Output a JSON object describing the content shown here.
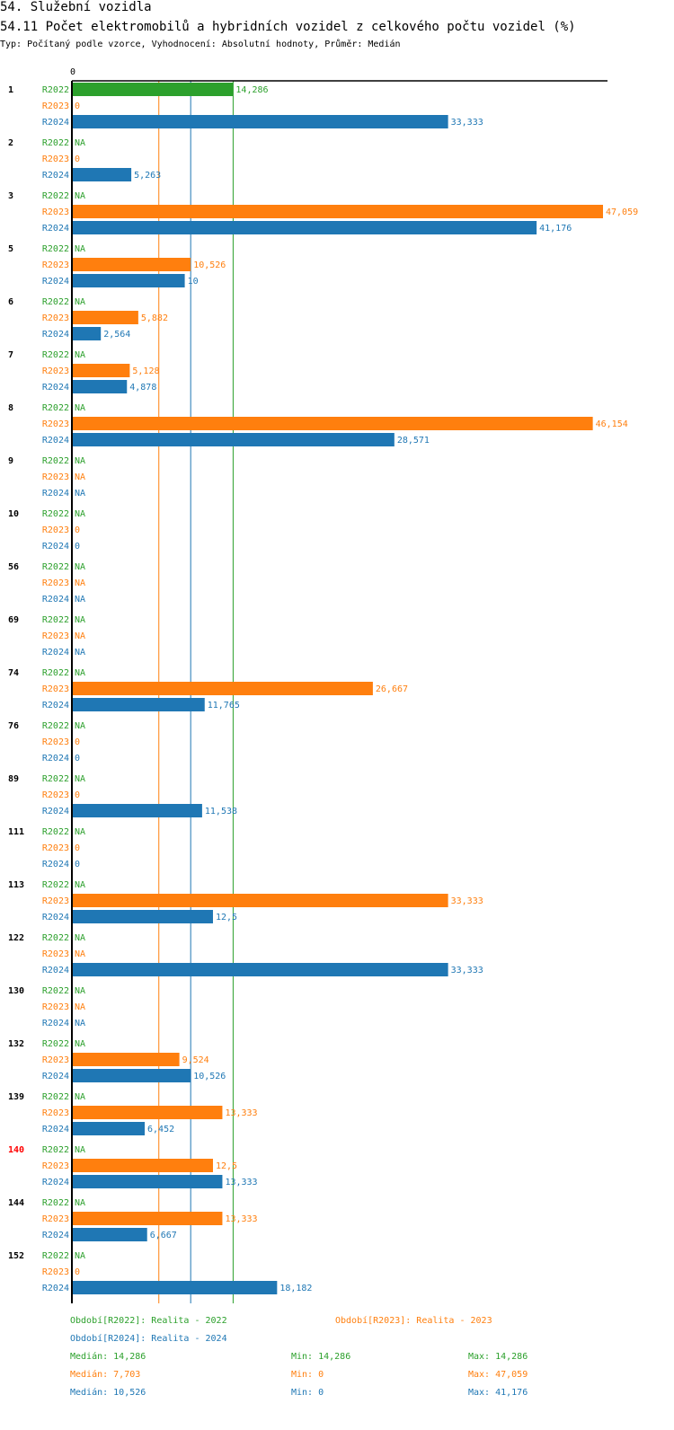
{
  "header": {
    "section_title": "54. Služební vozidla",
    "chart_title": "54.11 Počet elektromobilů a hybridních vozidel z celkového počtu vozidel (%)",
    "subtitle": "Typ: Počítaný podle vzorce, Vyhodnocení: Absolutní hodnoty, Průměr: Medián"
  },
  "chart_data": {
    "type": "bar",
    "orientation": "horizontal",
    "title": "54.11 Počet elektromobilů a hybridních vozidel z celkového počtu vozidel (%)",
    "axis_zero_label": "0",
    "xlim": [
      0,
      47.059
    ],
    "categories": [
      "1",
      "2",
      "3",
      "5",
      "6",
      "7",
      "8",
      "9",
      "10",
      "56",
      "69",
      "74",
      "76",
      "89",
      "111",
      "113",
      "122",
      "130",
      "132",
      "139",
      "140",
      "144",
      "152"
    ],
    "highlight_category": "140",
    "series": [
      {
        "name": "R2022",
        "color": "#2ca02c",
        "values": [
          14.286,
          null,
          null,
          null,
          null,
          null,
          null,
          null,
          null,
          null,
          null,
          null,
          null,
          null,
          null,
          null,
          null,
          null,
          null,
          null,
          null,
          null,
          null
        ],
        "labels": [
          "14,286",
          "NA",
          "NA",
          "NA",
          "NA",
          "NA",
          "NA",
          "NA",
          "NA",
          "NA",
          "NA",
          "NA",
          "NA",
          "NA",
          "NA",
          "NA",
          "NA",
          "NA",
          "NA",
          "NA",
          "NA",
          "NA",
          "NA"
        ]
      },
      {
        "name": "R2023",
        "color": "#ff7f0e",
        "values": [
          0,
          0,
          47.059,
          10.526,
          5.882,
          5.128,
          46.154,
          null,
          0,
          null,
          null,
          26.667,
          0,
          0,
          0,
          33.333,
          null,
          null,
          9.524,
          13.333,
          12.5,
          13.333,
          0
        ],
        "labels": [
          "0",
          "0",
          "47,059",
          "10,526",
          "5,882",
          "5,128",
          "46,154",
          "NA",
          "0",
          "NA",
          "NA",
          "26,667",
          "0",
          "0",
          "0",
          "33,333",
          "NA",
          "NA",
          "9,524",
          "13,333",
          "12,5",
          "13,333",
          "0"
        ]
      },
      {
        "name": "R2024",
        "color": "#1f77b4",
        "values": [
          33.333,
          5.263,
          41.176,
          10,
          2.564,
          4.878,
          28.571,
          null,
          0,
          null,
          null,
          11.765,
          0,
          11.538,
          0,
          12.5,
          33.333,
          null,
          10.526,
          6.452,
          13.333,
          6.667,
          18.182
        ],
        "labels": [
          "33,333",
          "5,263",
          "41,176",
          "10",
          "2,564",
          "4,878",
          "28,571",
          "NA",
          "0",
          "NA",
          "NA",
          "11,765",
          "0",
          "11,538",
          "0",
          "12,5",
          "33,333",
          "NA",
          "10,526",
          "6,452",
          "13,333",
          "6,667",
          "18,182"
        ]
      }
    ],
    "median_lines": [
      {
        "series": "R2023",
        "value": 7.703
      },
      {
        "series": "R2024",
        "value": 10.526
      },
      {
        "series": "R2022",
        "value": 14.286
      }
    ],
    "legend": {
      "periods": [
        {
          "text": "Období[R2022]: Realita - 2022",
          "color": "#2ca02c"
        },
        {
          "text": "Období[R2023]: Realita - 2023",
          "color": "#ff7f0e"
        },
        {
          "text": "Období[R2024]: Realita - 2024",
          "color": "#1f77b4"
        }
      ],
      "stats": [
        {
          "median": "Medián: 14,286",
          "min": "Min: 14,286",
          "max": "Max: 14,286",
          "color": "#2ca02c"
        },
        {
          "median": "Medián: 7,703",
          "min": "Min: 0",
          "max": "Max: 47,059",
          "color": "#ff7f0e"
        },
        {
          "median": "Medián: 10,526",
          "min": "Min: 0",
          "max": "Max: 41,176",
          "color": "#1f77b4"
        }
      ]
    }
  }
}
